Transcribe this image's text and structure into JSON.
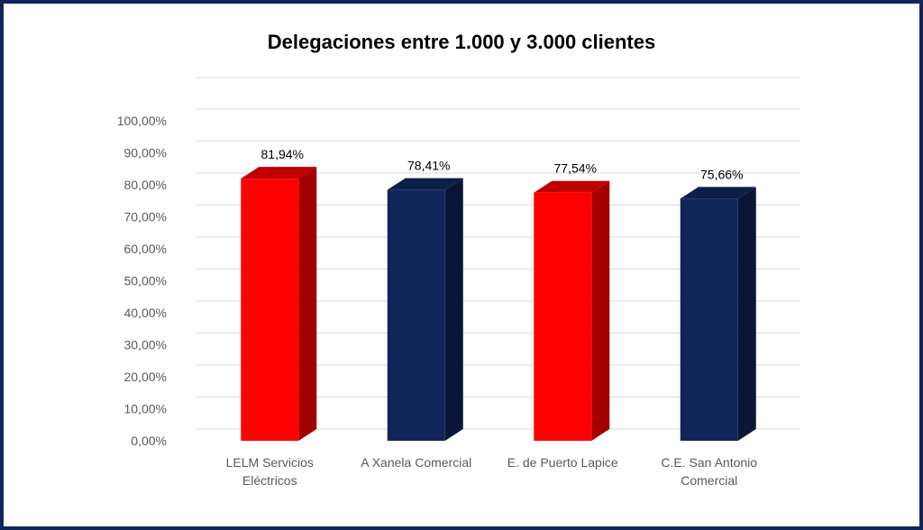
{
  "chart_data": {
    "type": "bar",
    "title": "Delegaciones entre 1.000 y 3.000 clientes",
    "categories": [
      [
        "LELM Servicios",
        "Eléctricos"
      ],
      [
        "A Xanela Comercial"
      ],
      [
        "E. de Puerto Lapice"
      ],
      [
        "C.E. San Antonio",
        "Comercial"
      ]
    ],
    "values": [
      81.94,
      78.41,
      77.54,
      75.66
    ],
    "data_labels": [
      "81,94%",
      "78,41%",
      "77,54%",
      "75,66%"
    ],
    "y_ticks": [
      "0,00%",
      "10,00%",
      "20,00%",
      "30,00%",
      "40,00%",
      "50,00%",
      "60,00%",
      "70,00%",
      "80,00%",
      "90,00%",
      "100,00%"
    ],
    "ylim": [
      0,
      100
    ],
    "grid": true,
    "colors": [
      "#ff0000",
      "#10265a",
      "#ff0000",
      "#10265a"
    ],
    "side_colors": [
      "#a50000",
      "#0a1638",
      "#a50000",
      "#0a1638"
    ],
    "top_colors": [
      "#c00000",
      "#0d1f48",
      "#c00000",
      "#0d1f48"
    ],
    "frame_color": "#10265a"
  }
}
